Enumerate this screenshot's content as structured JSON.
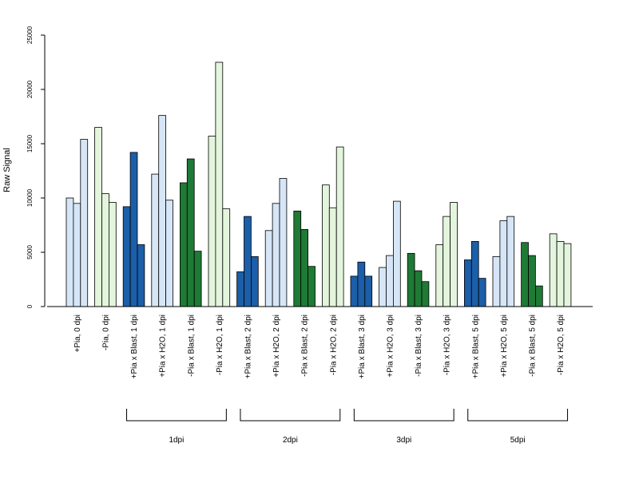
{
  "colors": {
    "light_blue": "#d6e6f7",
    "light_green": "#e3f5dc",
    "dark_blue": "#1c5ea8",
    "dark_green": "#1e7a35",
    "outline": "#000000"
  },
  "chart_data": {
    "type": "bar",
    "title": "",
    "xlabel": "",
    "ylabel": "Raw Signal",
    "ylim": [
      0,
      25000
    ],
    "yticks": [
      "0",
      "5000",
      "10000",
      "15000",
      "20000",
      "25000"
    ],
    "categories": [
      "+Pia, 0 dpi",
      "-Pia, 0 dpi",
      "+Pia x Blast, 1 dpi",
      "+Pia x H2O, 1 dpi",
      "-Pia x Blast, 1 dpi",
      "-Pia x H2O, 1 dpi",
      "+Pia x Blast, 2 dpi",
      "+Pia x H2O, 2 dpi",
      "-Pia x Blast, 2 dpi",
      "-Pia x H2O, 2 dpi",
      "+Pia x Blast, 3 dpi",
      "+Pia x H2O, 3 dpi",
      "-Pia x Blast, 3 dpi",
      "-Pia x H2O, 3 dpi",
      "+Pia x Blast, 5 dpi",
      "+Pia x H2O, 5 dpi",
      "-Pia x Blast, 5 dpi",
      "-Pia x H2O, 5 dpi"
    ],
    "bar_color_keys": [
      "light_blue",
      "light_green",
      "dark_blue",
      "light_blue",
      "dark_green",
      "light_green",
      "dark_blue",
      "light_blue",
      "dark_green",
      "light_green",
      "dark_blue",
      "light_blue",
      "dark_green",
      "light_green",
      "dark_blue",
      "light_blue",
      "dark_green",
      "light_green"
    ],
    "replicates": [
      [
        10000,
        9500,
        15400
      ],
      [
        16500,
        10400,
        9600
      ],
      [
        9200,
        14200,
        5700
      ],
      [
        12200,
        17600,
        9800
      ],
      [
        11400,
        13600,
        5100
      ],
      [
        15700,
        22500,
        9000
      ],
      [
        3200,
        8300,
        4600
      ],
      [
        7000,
        9500,
        11800
      ],
      [
        8800,
        7100,
        3700
      ],
      [
        11200,
        9100,
        14700
      ],
      [
        2800,
        4100,
        2800
      ],
      [
        3600,
        4700,
        9700
      ],
      [
        4900,
        3300,
        2300
      ],
      [
        5700,
        8300,
        9600
      ],
      [
        4300,
        6000,
        2600
      ],
      [
        4600,
        7900,
        8300
      ],
      [
        5900,
        4700,
        1900
      ],
      [
        6700,
        6000,
        5800
      ]
    ],
    "groups": [
      {
        "label": "1dpi",
        "from": 2,
        "to": 5
      },
      {
        "label": "2dpi",
        "from": 6,
        "to": 9
      },
      {
        "label": "3dpi",
        "from": 10,
        "to": 13
      },
      {
        "label": "5dpi",
        "from": 14,
        "to": 17
      }
    ]
  }
}
